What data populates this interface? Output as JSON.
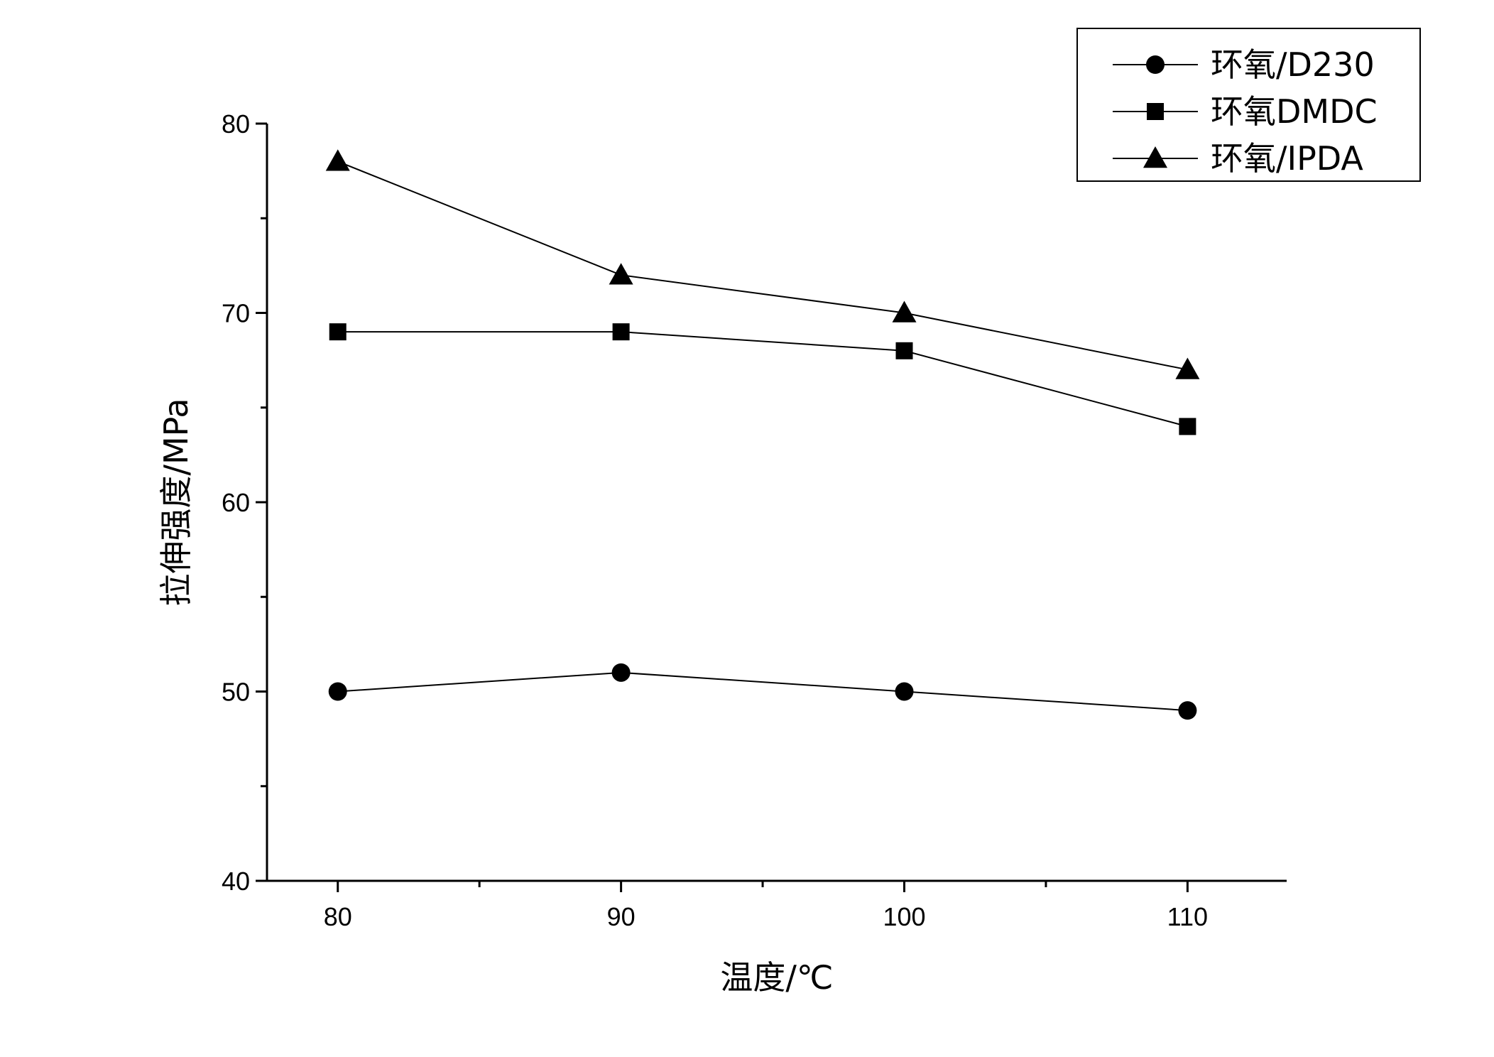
{
  "chart_data": {
    "type": "line",
    "title": "",
    "xlabel": "温度/℃",
    "ylabel": "拉伸强度/MPa",
    "x": [
      80,
      90,
      100,
      110
    ],
    "xlim": [
      77.5,
      113.5
    ],
    "ylim": [
      40,
      80
    ],
    "xticks": [
      80,
      90,
      100,
      110
    ],
    "yticks": [
      40,
      50,
      60,
      70,
      80
    ],
    "grid": false,
    "legend_position": "top-right",
    "line_color": "#000000",
    "series": [
      {
        "name": "环氧/D230",
        "marker": "circle",
        "values": [
          50,
          51,
          50,
          49
        ]
      },
      {
        "name": "环氧DMDC",
        "marker": "square",
        "values": [
          69,
          69,
          68,
          64
        ]
      },
      {
        "name": "环氧/IPDA",
        "marker": "triangle",
        "values": [
          78,
          72,
          70,
          67
        ]
      }
    ]
  }
}
